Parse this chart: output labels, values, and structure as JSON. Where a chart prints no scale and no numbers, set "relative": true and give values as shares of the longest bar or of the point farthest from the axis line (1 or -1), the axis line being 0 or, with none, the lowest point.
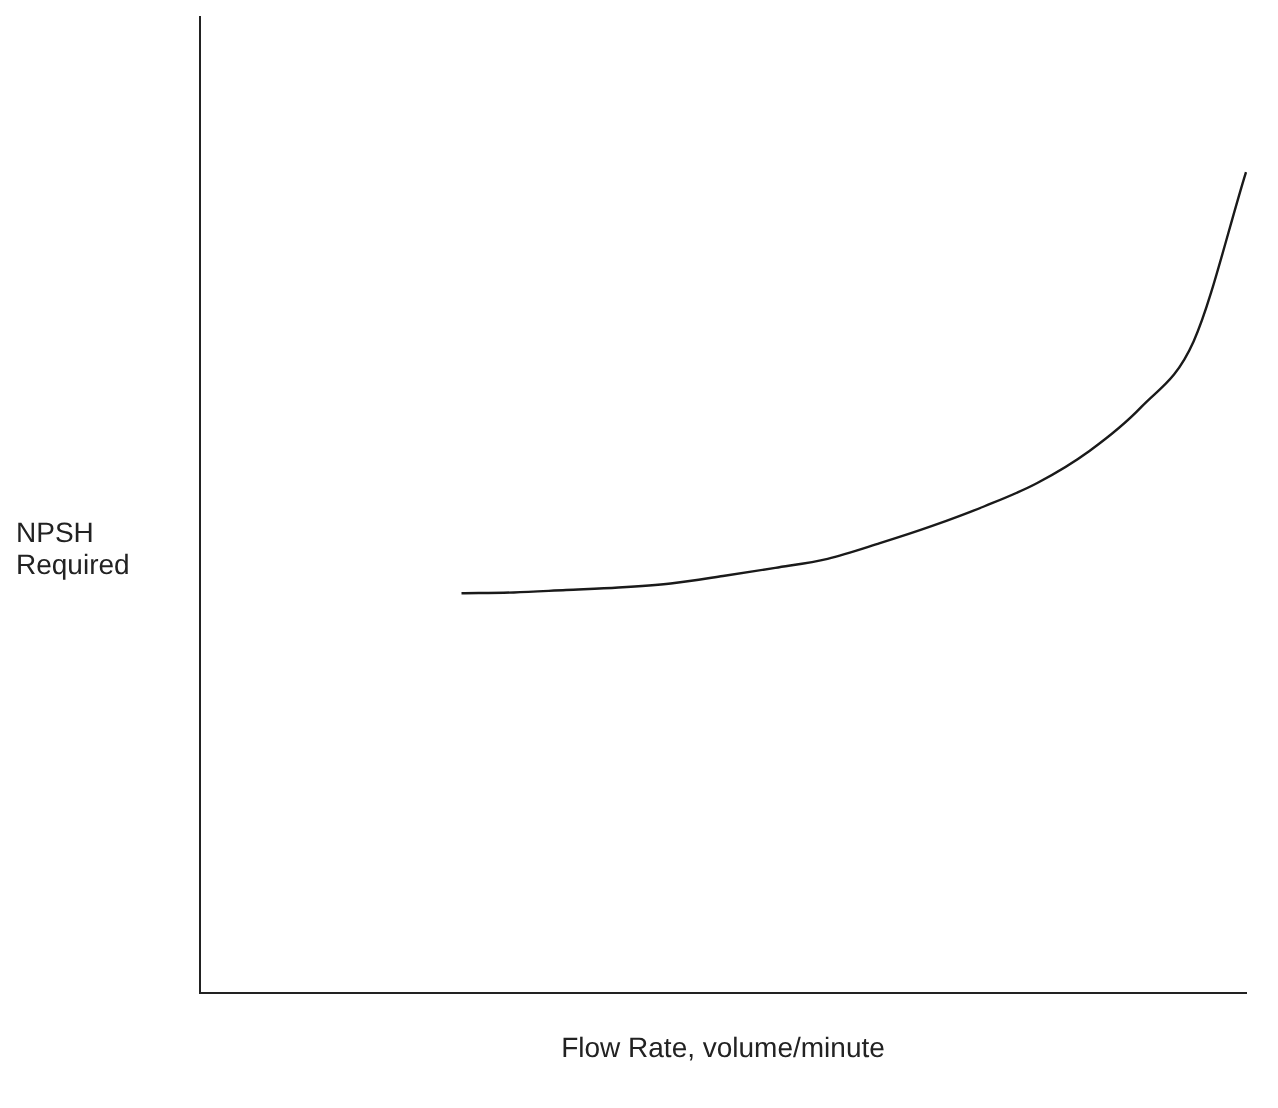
{
  "chart_data": {
    "type": "line",
    "xlabel": "Flow Rate, volume/minute",
    "ylabel": "NPSH\nRequired",
    "relative": true,
    "categories": [
      null,
      null,
      null,
      null,
      null,
      null,
      null,
      null,
      null,
      null,
      null,
      null,
      null,
      null,
      null,
      null,
      null,
      null,
      null,
      null,
      null
    ],
    "series": [
      {
        "color": "#1a1a1a",
        "values": [
          null,
          null,
          null,
          null,
          null,
          0.487,
          0.488,
          0.491,
          0.494,
          0.499,
          0.508,
          0.518,
          0.529,
          0.548,
          0.569,
          0.593,
          0.621,
          0.66,
          0.714,
          0.794,
          1
        ]
      }
    ],
    "marker": "none",
    "line_style": "solid",
    "grid": false,
    "legend": false
  }
}
